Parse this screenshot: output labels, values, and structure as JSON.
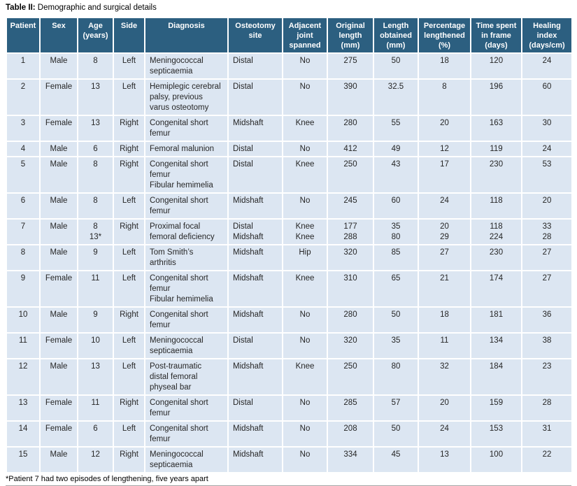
{
  "page": {
    "title_bold": "Table II:",
    "title_rest": " Demographic and surgical details",
    "footnote": "*Patient 7 had two episodes of lengthening, five years apart"
  },
  "colors": {
    "header_bg": "#2c5f80",
    "row_bg": "#dce6f2",
    "header_text": "#ffffff",
    "body_text": "#262626",
    "rule": "#a6a6a6"
  },
  "table": {
    "columns": [
      "Patient",
      "Sex",
      "Age\n(years)",
      "Side",
      "Diagnosis",
      "Osteotomy\nsite",
      "Adjacent\njoint\nspanned",
      "Original\nlength\n(mm)",
      "Length\nobtained\n(mm)",
      "Percentage\nlengthened\n(%)",
      "Time spent\nin frame\n(days)",
      "Healing\nindex\n(days/cm)"
    ],
    "rows": [
      [
        "1",
        "Male",
        "8",
        "Left",
        "Meningococcal\nsepticaemia",
        "Distal",
        "No",
        "275",
        "50",
        "18",
        "120",
        "24"
      ],
      [
        "2",
        "Female",
        "13",
        "Left",
        "Hemiplegic cerebral\npalsy, previous\nvarus osteotomy",
        "Distal",
        "No",
        "390",
        "32.5",
        "8",
        "196",
        "60"
      ],
      [
        "3",
        "Female",
        "13",
        "Right",
        "Congenital short\nfemur",
        "Midshaft",
        "Knee",
        "280",
        "55",
        "20",
        "163",
        "30"
      ],
      [
        "4",
        "Male",
        "6",
        "Right",
        "Femoral malunion",
        "Distal",
        "No",
        "412",
        "49",
        "12",
        "119",
        "24"
      ],
      [
        "5",
        "Male",
        "8",
        "Right",
        "Congenital short\nfemur\nFibular hemimelia",
        "Distal",
        "Knee",
        "250",
        "43",
        "17",
        "230",
        "53"
      ],
      [
        "6",
        "Male",
        "8",
        "Left",
        "Congenital short\nfemur",
        "Midshaft",
        "No",
        "245",
        "60",
        "24",
        "118",
        "20"
      ],
      [
        "7",
        "Male",
        "8\n13*",
        "Right",
        "Proximal focal\nfemoral deficiency",
        "Distal\nMidshaft",
        "Knee\nKnee",
        "177\n288",
        "35\n80",
        "20\n29",
        "118\n224",
        "33\n28"
      ],
      [
        "8",
        "Male",
        "9",
        "Left",
        "Tom Smith’s\narthritis",
        "Midshaft",
        "Hip",
        "320",
        "85",
        "27",
        "230",
        "27"
      ],
      [
        "9",
        "Female",
        "11",
        "Left",
        "Congenital short\nfemur\nFibular hemimelia",
        "Midshaft",
        "Knee",
        "310",
        "65",
        "21",
        "174",
        "27"
      ],
      [
        "10",
        "Male",
        "9",
        "Right",
        "Congenital short\nfemur",
        "Midshaft",
        "No",
        "280",
        "50",
        "18",
        "181",
        "36"
      ],
      [
        "11",
        "Female",
        "10",
        "Left",
        "Meningococcal\nsepticaemia",
        "Distal",
        "No",
        "320",
        "35",
        "11",
        "134",
        "38"
      ],
      [
        "12",
        "Male",
        "13",
        "Left",
        "Post-traumatic\ndistal femoral\nphyseal bar",
        "Midshaft",
        "Knee",
        "250",
        "80",
        "32",
        "184",
        "23"
      ],
      [
        "13",
        "Female",
        "11",
        "Right",
        "Congenital short\nfemur",
        "Distal",
        "No",
        "285",
        "57",
        "20",
        "159",
        "28"
      ],
      [
        "14",
        "Female",
        "6",
        "Left",
        "Congenital short\nfemur",
        "Midshaft",
        "No",
        "208",
        "50",
        "24",
        "153",
        "31"
      ],
      [
        "15",
        "Male",
        "12",
        "Right",
        "Meningococcal\nsepticaemia",
        "Midshaft",
        "No",
        "334",
        "45",
        "13",
        "100",
        "22"
      ]
    ]
  }
}
